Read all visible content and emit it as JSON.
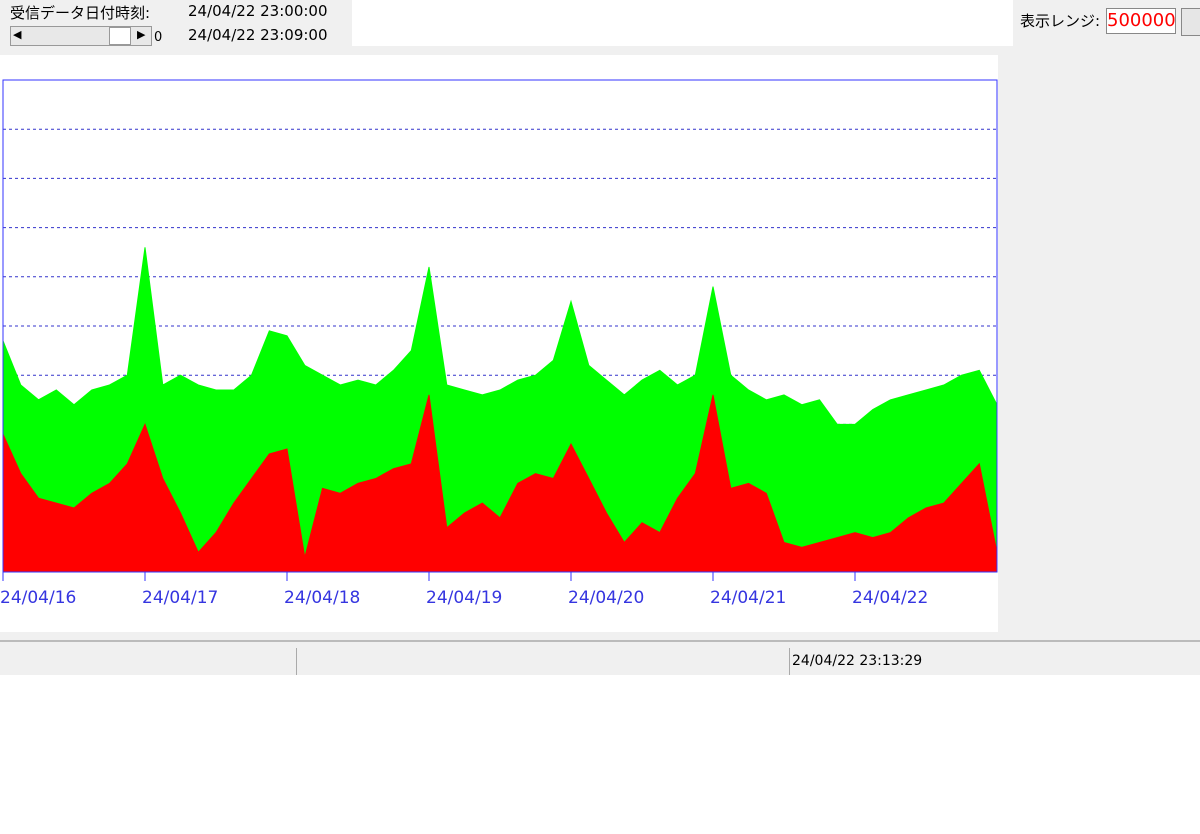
{
  "ui": {
    "received_label": "受信データ日付時刻:",
    "received_from": "24/04/22 23:00:00",
    "received_to": "24/04/22 23:09:00",
    "scroll_value": "0",
    "range_label": "表示レンジ:",
    "range_value": "500000",
    "status_time": "24/04/22 23:13:29"
  },
  "chart_data": {
    "type": "area",
    "x": [
      0,
      3,
      6,
      9,
      12,
      15,
      18,
      21,
      24,
      27,
      30,
      33,
      36,
      39,
      42,
      45,
      48,
      51,
      54,
      57,
      60,
      63,
      66,
      69,
      72,
      75,
      78,
      81,
      84,
      87,
      90,
      93,
      96,
      99,
      102,
      105,
      108,
      111,
      114,
      117,
      120,
      123,
      126,
      129,
      132,
      135,
      138,
      141,
      144,
      147,
      150,
      153,
      156,
      159,
      162,
      165,
      168
    ],
    "series": [
      {
        "color": "#00ff00",
        "values": [
          235000,
          190000,
          175000,
          185000,
          170000,
          185000,
          190000,
          200000,
          330000,
          190000,
          200000,
          190000,
          185000,
          185000,
          200000,
          245000,
          240000,
          210000,
          200000,
          190000,
          195000,
          190000,
          205000,
          225000,
          310000,
          190000,
          185000,
          180000,
          185000,
          195000,
          200000,
          215000,
          275000,
          210000,
          195000,
          180000,
          195000,
          205000,
          190000,
          200000,
          290000,
          200000,
          185000,
          175000,
          180000,
          170000,
          175000,
          150000,
          150000,
          165000,
          175000,
          180000,
          185000,
          190000,
          200000,
          205000,
          170000
        ]
      },
      {
        "color": "#ff0000",
        "values": [
          140000,
          100000,
          75000,
          70000,
          65000,
          80000,
          90000,
          110000,
          150000,
          95000,
          60000,
          20000,
          40000,
          70000,
          95000,
          120000,
          125000,
          15000,
          85000,
          80000,
          90000,
          95000,
          105000,
          110000,
          180000,
          45000,
          60000,
          70000,
          55000,
          90000,
          100000,
          95000,
          130000,
          95000,
          60000,
          30000,
          50000,
          40000,
          75000,
          100000,
          180000,
          85000,
          90000,
          80000,
          30000,
          25000,
          30000,
          35000,
          40000,
          35000,
          40000,
          55000,
          65000,
          70000,
          90000,
          110000,
          20000
        ]
      }
    ],
    "xlim": [
      0,
      168
    ],
    "xticks": [
      {
        "value": 0,
        "label": "24/04/16"
      },
      {
        "value": 24,
        "label": "24/04/17"
      },
      {
        "value": 48,
        "label": "24/04/18"
      },
      {
        "value": 72,
        "label": "24/04/19"
      },
      {
        "value": 96,
        "label": "24/04/20"
      },
      {
        "value": 120,
        "label": "24/04/21"
      },
      {
        "value": 144,
        "label": "24/04/22"
      }
    ],
    "ylim": [
      0,
      500000
    ],
    "yticks": [
      50000,
      100000,
      150000,
      200000,
      250000,
      300000,
      350000,
      400000,
      450000
    ],
    "grid": true
  }
}
